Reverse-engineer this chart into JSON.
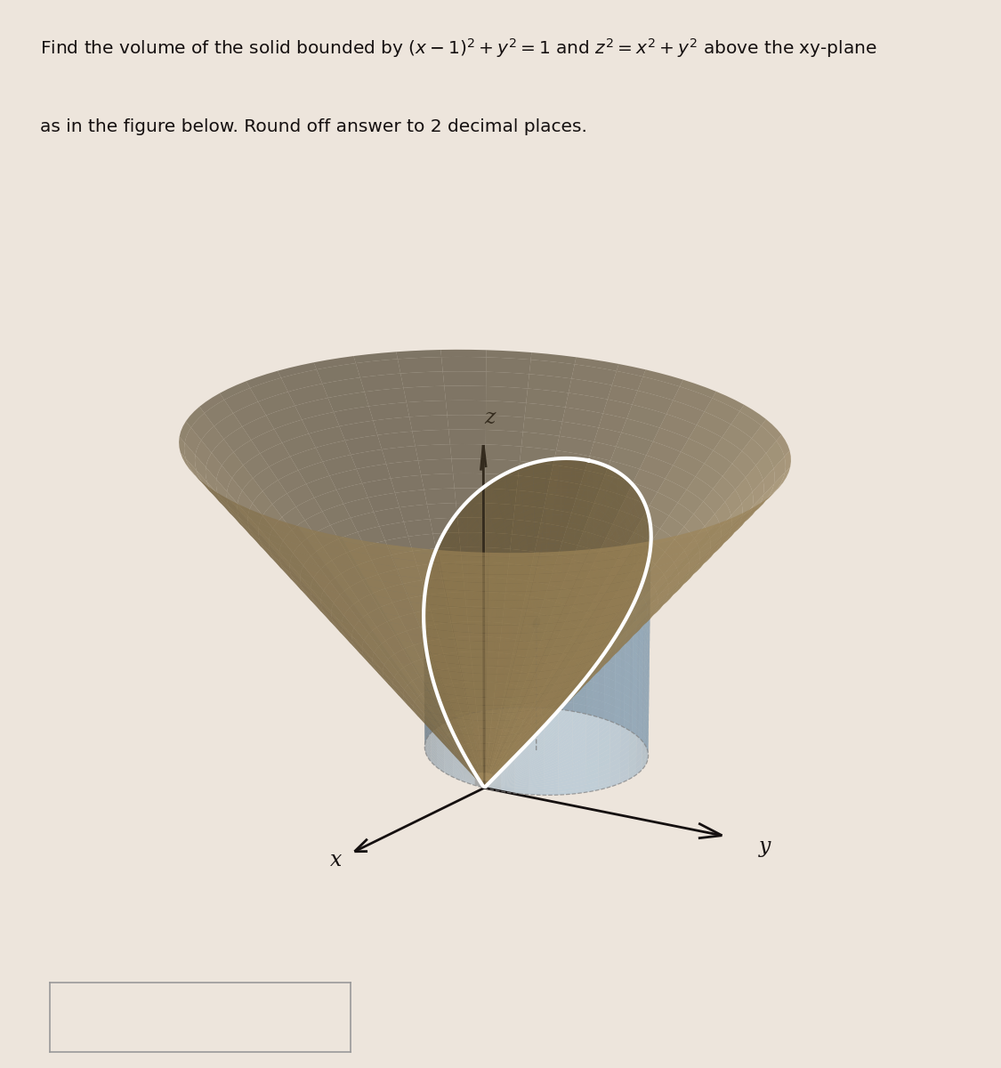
{
  "bg_color": "#ede5dc",
  "white_area_color": "#f5f0eb",
  "cylinder_color": "#90b8d8",
  "cylinder_alpha": 0.45,
  "cone_color": "#c8a96e",
  "cone_alpha": 0.65,
  "cone_top_alpha": 0.75,
  "axis_color": "#151010",
  "text_color": "#151010",
  "curve_color": "#b03040",
  "white_ring_color": "#ffffff",
  "dashed_color": "#808080",
  "title1": "Find the volume of the solid bounded by $(x - 1)^2 + y^2 = 1$ and $z^2 = x^2 + y^2$ above the xy-plane",
  "title2": "as in the figure below. Round off answer to 2 decimal places.",
  "elev": 22,
  "azim": 210,
  "xlim": [
    -1.5,
    3.5
  ],
  "ylim": [
    -2.0,
    2.5
  ],
  "zlim": [
    0,
    2.8
  ]
}
